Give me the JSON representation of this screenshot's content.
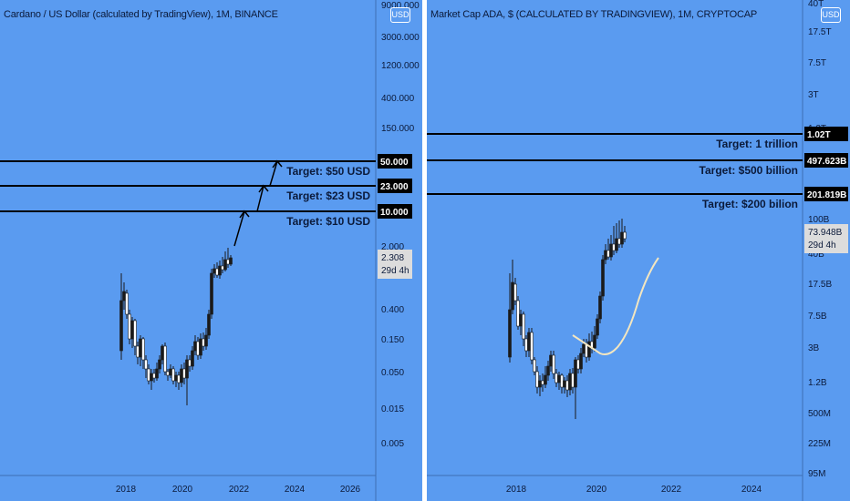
{
  "chart_data": [
    {
      "type": "candlestick",
      "title": "Cardano / US Dollar (calculated by TradingView), 1M, BINANCE",
      "currency_badge": "USD",
      "log_scale": true,
      "x_ticks": [
        "2018",
        "2020",
        "2022",
        "2024",
        "2026"
      ],
      "y_ticks": [
        "9000.000",
        "3000.000",
        "1200.000",
        "400.000",
        "150.000",
        "50.000",
        "23.000",
        "10.000",
        "2.000",
        "1.200",
        "0.400",
        "0.150",
        "0.050",
        "0.015",
        "0.005"
      ],
      "targets": [
        {
          "label": "Target: $50 USD",
          "value": "50.000"
        },
        {
          "label": "Target: $23 USD",
          "value": "23.000"
        },
        {
          "label": "Target: $10 USD",
          "value": "10.000"
        }
      ],
      "last_price": {
        "value": "2.308",
        "countdown": "29d 4h"
      }
    },
    {
      "type": "candlestick",
      "title": "Market Cap ADA, $ (CALCULATED BY TRADINGVIEW), 1M, CRYPTOCAP",
      "currency_badge": "USD",
      "log_scale": true,
      "x_ticks": [
        "2018",
        "2020",
        "2022",
        "2024"
      ],
      "y_ticks": [
        "40T",
        "17.5T",
        "7.5T",
        "3T",
        "1.2T",
        "100B",
        "40B",
        "17.5B",
        "7.5B",
        "3B",
        "1.2B",
        "500M",
        "225M",
        "95M"
      ],
      "targets": [
        {
          "label": "Target: 1 trillion",
          "value": "1.02T"
        },
        {
          "label": "Target: $500 billion",
          "value": "497.623B"
        },
        {
          "label": "Target: $200 bilion",
          "value": "201.819B"
        }
      ],
      "last_price": {
        "value": "73.948B",
        "countdown": "29d 4h"
      }
    }
  ]
}
